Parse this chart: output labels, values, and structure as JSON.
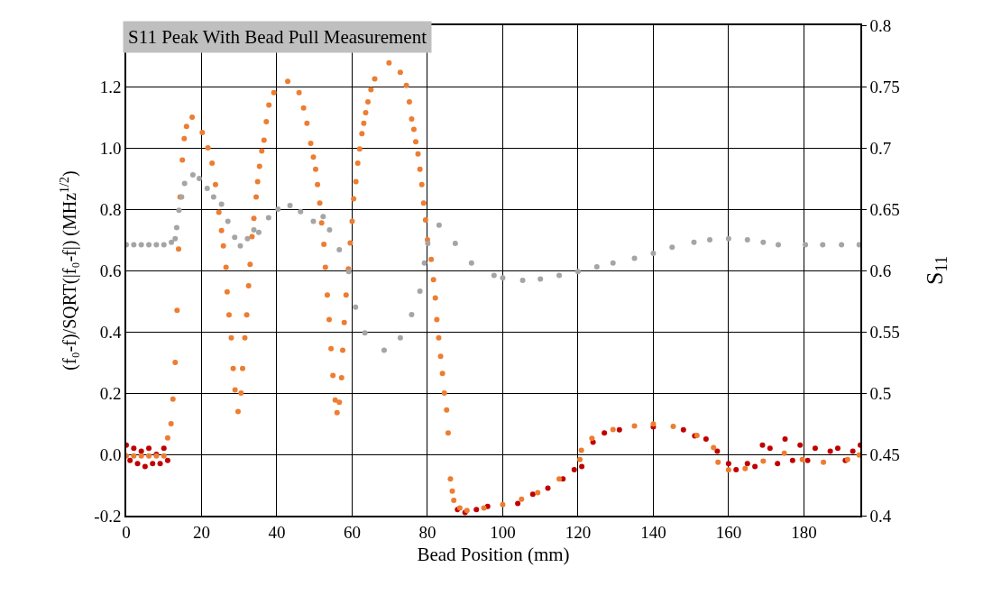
{
  "chart_data": {
    "type": "scatter",
    "title": "S11 Peak With Bead Pull Measurement",
    "xlabel": "Bead Position (mm)",
    "ylabel": "(f₀-f)/SQRT(|f₀-f|) (MHz$^{1/2}$)",
    "y2label": "S$_{11}$",
    "xlim": [
      0,
      195
    ],
    "xticks": [
      0,
      20,
      40,
      60,
      80,
      100,
      120,
      140,
      160,
      180
    ],
    "ylim": [
      -0.2,
      1.4
    ],
    "yticks": [
      -0.2,
      {
        "value": 0,
        "label": "0.0"
      },
      0.2,
      0.4,
      0.6,
      0.8,
      {
        "value": 1,
        "label": "1.0"
      },
      1.2
    ],
    "y2lim": [
      0.4,
      0.8
    ],
    "y2ticks": [
      0.4,
      0.45,
      0.5,
      0.55,
      0.6,
      0.65,
      0.7,
      0.75,
      0.8
    ],
    "grid": true,
    "marker": "circle",
    "legend": false,
    "series": [
      {
        "color": "#c00000",
        "x": [
          0,
          1,
          2,
          3,
          4,
          5,
          6,
          7,
          8,
          9,
          10,
          11,
          88,
          90,
          93,
          96,
          100,
          104,
          108,
          112,
          116,
          119,
          121,
          124,
          127,
          131,
          135,
          140,
          145,
          148,
          151,
          154,
          157,
          160,
          162,
          165,
          167,
          169,
          171,
          173,
          175,
          177,
          179,
          181,
          183,
          185,
          187,
          189,
          191,
          193,
          195
        ],
        "values": [
          0.03,
          -0.02,
          0.02,
          -0.03,
          0.01,
          -0.04,
          0.02,
          -0.03,
          0.0,
          -0.03,
          0.02,
          -0.02,
          -0.18,
          -0.19,
          -0.18,
          -0.17,
          null,
          -0.16,
          -0.13,
          -0.11,
          -0.08,
          -0.05,
          -0.04,
          0.04,
          0.07,
          0.08,
          null,
          0.09,
          null,
          0.08,
          0.06,
          0.05,
          0.01,
          -0.03,
          -0.05,
          -0.03,
          -0.04,
          0.03,
          0.02,
          -0.03,
          0.05,
          -0.02,
          0.03,
          -0.02,
          0.02,
          null,
          0.01,
          0.02,
          -0.02,
          0.01,
          0.03
        ]
      },
      {
        "color": "#a5a5a5",
        "axis": "y2",
        "x": [
          0,
          2,
          4,
          6,
          8,
          10,
          12,
          13,
          13.4,
          14,
          14.7,
          15.5,
          17.7,
          19.4,
          21.5,
          23.2,
          25.3,
          27,
          28.8,
          30.3,
          32.2,
          33.9,
          35.2,
          37.8,
          40.3,
          43.5,
          46.3,
          49.7,
          52.3,
          54,
          56.6,
          59.1,
          60.9,
          63.4,
          68.5,
          72.8,
          75.8,
          78,
          79.2,
          80.1,
          83.1,
          87.4,
          91.7,
          97.7,
          100,
          105.3,
          110,
          115,
          120,
          125,
          129.3,
          135,
          140,
          145,
          150.8,
          155,
          160,
          165,
          169.2,
          173.2,
          180.4,
          185,
          190,
          194.7
        ],
        "values": [
          0.621,
          0.621,
          0.621,
          0.621,
          0.621,
          0.621,
          0.623,
          0.626,
          0.635,
          0.649,
          0.66,
          0.671,
          0.678,
          0.675,
          0.667,
          0.66,
          0.654,
          0.64,
          0.627,
          0.62,
          0.626,
          0.633,
          0.631,
          0.643,
          0.65,
          0.653,
          0.648,
          0.64,
          0.644,
          0.633,
          0.617,
          0.599,
          0.57,
          0.549,
          0.535,
          0.545,
          0.564,
          0.583,
          0.606,
          0.622,
          0.637,
          0.622,
          0.606,
          0.596,
          0.594,
          0.592,
          0.593,
          0.596,
          0.599,
          0.603,
          0.606,
          0.61,
          0.614,
          0.619,
          0.623,
          0.625,
          0.626,
          0.625,
          0.623,
          0.621,
          0.621,
          0.621,
          0.621,
          0.621
        ]
      },
      {
        "color": "#ed7d31",
        "x": [
          0,
          2,
          4,
          6,
          8,
          10,
          11,
          11.9,
          12.4,
          13,
          13.5,
          13.9,
          14.3,
          14.9,
          15.4,
          16,
          17.5,
          20.2,
          21.7,
          22.8,
          23.7,
          24.6,
          25.3,
          25.8,
          26.5,
          26.8,
          27.3,
          27.9,
          28.4,
          28.9,
          29.7,
          30.5,
          30.9,
          31.5,
          32,
          32.5,
          32.9,
          33.4,
          33.9,
          34.5,
          34.9,
          35.4,
          36,
          36.6,
          37.2,
          37.9,
          39.2,
          42.9,
          45.9,
          47.1,
          48,
          49,
          49.7,
          50.3,
          50.8,
          51.4,
          51.9,
          52.5,
          52.9,
          53.4,
          53.9,
          54.4,
          54.9,
          55.5,
          56,
          56.6,
          57.2,
          57.5,
          57.9,
          58.4,
          59,
          59.5,
          60,
          60.4,
          61,
          61.5,
          62,
          62.6,
          63.1,
          63.6,
          64.2,
          65,
          66,
          69.8,
          72.8,
          74.4,
          75.2,
          75.8,
          76.4,
          76.9,
          77.5,
          78,
          78.5,
          79,
          79.5,
          80,
          81,
          81.6,
          82.1,
          82.5,
          83,
          83.5,
          84,
          84.5,
          85.1,
          85.5,
          86.1,
          86.6,
          87,
          88.6,
          90.5,
          95,
          100,
          105,
          109.3,
          115,
          120.5,
          120.9,
          123.7,
          129.3,
          135,
          140,
          145.3,
          151.6,
          156,
          157.2,
          160,
          164.4,
          169.2,
          174.8,
          179.6,
          185.2,
          191.6,
          194.7
        ],
        "values": [
          -0.005,
          -0.005,
          -0.005,
          -0.005,
          -0.005,
          -0.005,
          0.054,
          0.1,
          0.18,
          0.3,
          0.47,
          0.67,
          0.84,
          0.96,
          1.03,
          1.07,
          1.1,
          1.05,
          1.0,
          0.95,
          0.88,
          0.79,
          0.73,
          0.68,
          0.61,
          0.53,
          0.455,
          0.38,
          0.28,
          0.21,
          0.14,
          0.2,
          0.28,
          0.38,
          0.455,
          0.55,
          0.62,
          0.71,
          0.77,
          0.84,
          0.89,
          0.94,
          0.99,
          1.025,
          1.085,
          1.14,
          1.18,
          1.217,
          1.18,
          1.13,
          1.08,
          1.015,
          0.97,
          0.93,
          0.88,
          0.82,
          0.755,
          0.685,
          0.61,
          0.52,
          0.44,
          0.345,
          0.257,
          0.177,
          0.136,
          0.17,
          0.25,
          0.34,
          0.43,
          0.52,
          0.605,
          0.69,
          0.76,
          0.834,
          0.89,
          0.95,
          0.996,
          1.046,
          1.08,
          1.115,
          1.15,
          1.19,
          1.225,
          1.277,
          1.246,
          1.204,
          1.15,
          1.094,
          1.06,
          1.02,
          0.98,
          0.93,
          0.88,
          0.82,
          0.765,
          0.7,
          0.636,
          0.57,
          0.51,
          0.44,
          0.38,
          0.32,
          0.264,
          0.2,
          0.145,
          0.07,
          -0.08,
          -0.12,
          -0.15,
          -0.175,
          -0.183,
          -0.175,
          -0.164,
          -0.146,
          -0.125,
          -0.08,
          -0.017,
          0.013,
          0.052,
          0.081,
          0.093,
          0.099,
          0.091,
          0.062,
          0.022,
          -0.026,
          -0.051,
          -0.046,
          -0.022,
          0.004,
          -0.017,
          -0.026,
          -0.017,
          -0.002
        ]
      }
    ]
  }
}
